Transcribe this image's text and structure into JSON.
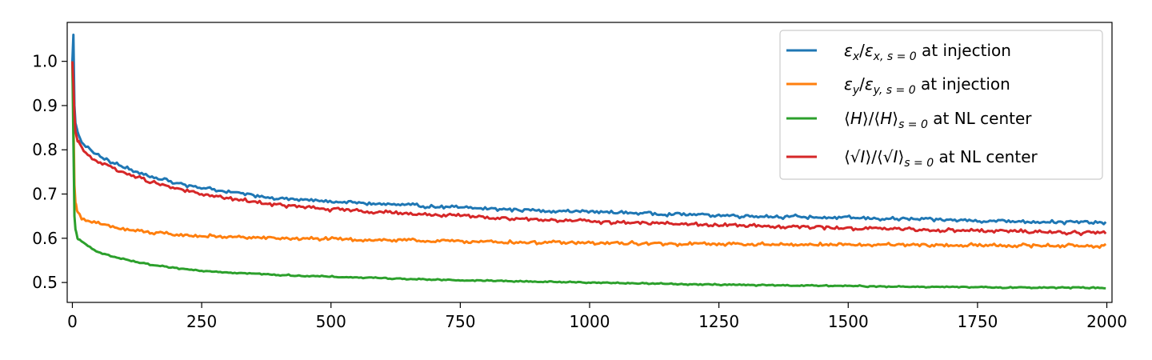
{
  "chart_data": {
    "type": "line",
    "title": "",
    "xlabel": "",
    "ylabel": "",
    "xlim": [
      -10,
      2010
    ],
    "ylim": [
      0.455,
      1.088
    ],
    "xticks": [
      0,
      250,
      500,
      750,
      1000,
      1250,
      1500,
      1750,
      2000
    ],
    "xtick_labels": [
      "0",
      "250",
      "500",
      "750",
      "1000",
      "1250",
      "1500",
      "1750",
      "2000"
    ],
    "yticks": [
      0.5,
      0.6,
      0.7,
      0.8,
      0.9,
      1.0
    ],
    "ytick_labels": [
      "0.5",
      "0.6",
      "0.7",
      "0.8",
      "0.9",
      "1.0"
    ],
    "grid": false,
    "legend_position": "top-right",
    "series": [
      {
        "name_parts": [
          {
            "t": "ε",
            "i": true
          },
          {
            "t": "x",
            "sub": true,
            "i": true
          },
          {
            "t": "/"
          },
          {
            "t": "ε",
            "i": true
          },
          {
            "t": "x, s = 0",
            "sub": true,
            "i": true
          },
          {
            "t": " at injection"
          }
        ],
        "color": "#1f77b4",
        "noise": 0.004,
        "points": [
          [
            0,
            1.0
          ],
          [
            2,
            1.06
          ],
          [
            4,
            0.9
          ],
          [
            6,
            0.86
          ],
          [
            10,
            0.84
          ],
          [
            20,
            0.815
          ],
          [
            40,
            0.795
          ],
          [
            60,
            0.78
          ],
          [
            80,
            0.77
          ],
          [
            100,
            0.76
          ],
          [
            150,
            0.74
          ],
          [
            200,
            0.725
          ],
          [
            250,
            0.715
          ],
          [
            300,
            0.705
          ],
          [
            400,
            0.69
          ],
          [
            500,
            0.683
          ],
          [
            600,
            0.677
          ],
          [
            750,
            0.669
          ],
          [
            900,
            0.663
          ],
          [
            1000,
            0.66
          ],
          [
            1250,
            0.652
          ],
          [
            1500,
            0.646
          ],
          [
            1750,
            0.64
          ],
          [
            2000,
            0.635
          ]
        ]
      },
      {
        "name_parts": [
          {
            "t": "ε",
            "i": true
          },
          {
            "t": "y",
            "sub": true,
            "i": true
          },
          {
            "t": "/"
          },
          {
            "t": "ε",
            "i": true
          },
          {
            "t": "y, s = 0",
            "sub": true,
            "i": true
          },
          {
            "t": " at injection"
          }
        ],
        "color": "#ff7f0e",
        "noise": 0.004,
        "points": [
          [
            0,
            1.0
          ],
          [
            2,
            0.88
          ],
          [
            4,
            0.72
          ],
          [
            6,
            0.68
          ],
          [
            10,
            0.66
          ],
          [
            20,
            0.645
          ],
          [
            40,
            0.635
          ],
          [
            60,
            0.63
          ],
          [
            80,
            0.625
          ],
          [
            100,
            0.62
          ],
          [
            150,
            0.613
          ],
          [
            200,
            0.608
          ],
          [
            250,
            0.605
          ],
          [
            300,
            0.603
          ],
          [
            400,
            0.6
          ],
          [
            500,
            0.598
          ],
          [
            750,
            0.593
          ],
          [
            1000,
            0.589
          ],
          [
            1250,
            0.587
          ],
          [
            1500,
            0.585
          ],
          [
            1750,
            0.584
          ],
          [
            2000,
            0.583
          ]
        ]
      },
      {
        "name_parts": [
          {
            "t": "⟨"
          },
          {
            "t": "H",
            "i": true
          },
          {
            "t": "⟩/⟨"
          },
          {
            "t": "H",
            "i": true
          },
          {
            "t": "⟩"
          },
          {
            "t": "s = 0",
            "sub": true,
            "i": true
          },
          {
            "t": " at NL center"
          }
        ],
        "color": "#2ca02c",
        "noise": 0.0015,
        "points": [
          [
            0,
            1.0
          ],
          [
            2,
            0.82
          ],
          [
            4,
            0.65
          ],
          [
            6,
            0.62
          ],
          [
            10,
            0.6
          ],
          [
            20,
            0.59
          ],
          [
            40,
            0.575
          ],
          [
            60,
            0.565
          ],
          [
            80,
            0.558
          ],
          [
            100,
            0.552
          ],
          [
            150,
            0.54
          ],
          [
            200,
            0.532
          ],
          [
            250,
            0.527
          ],
          [
            300,
            0.523
          ],
          [
            400,
            0.517
          ],
          [
            500,
            0.513
          ],
          [
            750,
            0.505
          ],
          [
            1000,
            0.5
          ],
          [
            1250,
            0.495
          ],
          [
            1500,
            0.492
          ],
          [
            1750,
            0.489
          ],
          [
            2000,
            0.488
          ]
        ]
      },
      {
        "name_parts": [
          {
            "t": "⟨√"
          },
          {
            "t": "I",
            "i": true
          },
          {
            "t": "⟩/⟨√"
          },
          {
            "t": "I",
            "i": true
          },
          {
            "t": "⟩"
          },
          {
            "t": "s = 0",
            "sub": true,
            "i": true
          },
          {
            "t": " at NL center"
          }
        ],
        "color": "#d62728",
        "noise": 0.004,
        "points": [
          [
            0,
            1.0
          ],
          [
            2,
            0.95
          ],
          [
            4,
            0.88
          ],
          [
            6,
            0.84
          ],
          [
            10,
            0.82
          ],
          [
            20,
            0.8
          ],
          [
            40,
            0.78
          ],
          [
            60,
            0.768
          ],
          [
            80,
            0.758
          ],
          [
            100,
            0.748
          ],
          [
            150,
            0.728
          ],
          [
            200,
            0.712
          ],
          [
            250,
            0.7
          ],
          [
            300,
            0.69
          ],
          [
            400,
            0.675
          ],
          [
            500,
            0.665
          ],
          [
            600,
            0.659
          ],
          [
            750,
            0.65
          ],
          [
            1000,
            0.638
          ],
          [
            1250,
            0.63
          ],
          [
            1500,
            0.623
          ],
          [
            1750,
            0.617
          ],
          [
            2000,
            0.612
          ]
        ]
      }
    ]
  }
}
